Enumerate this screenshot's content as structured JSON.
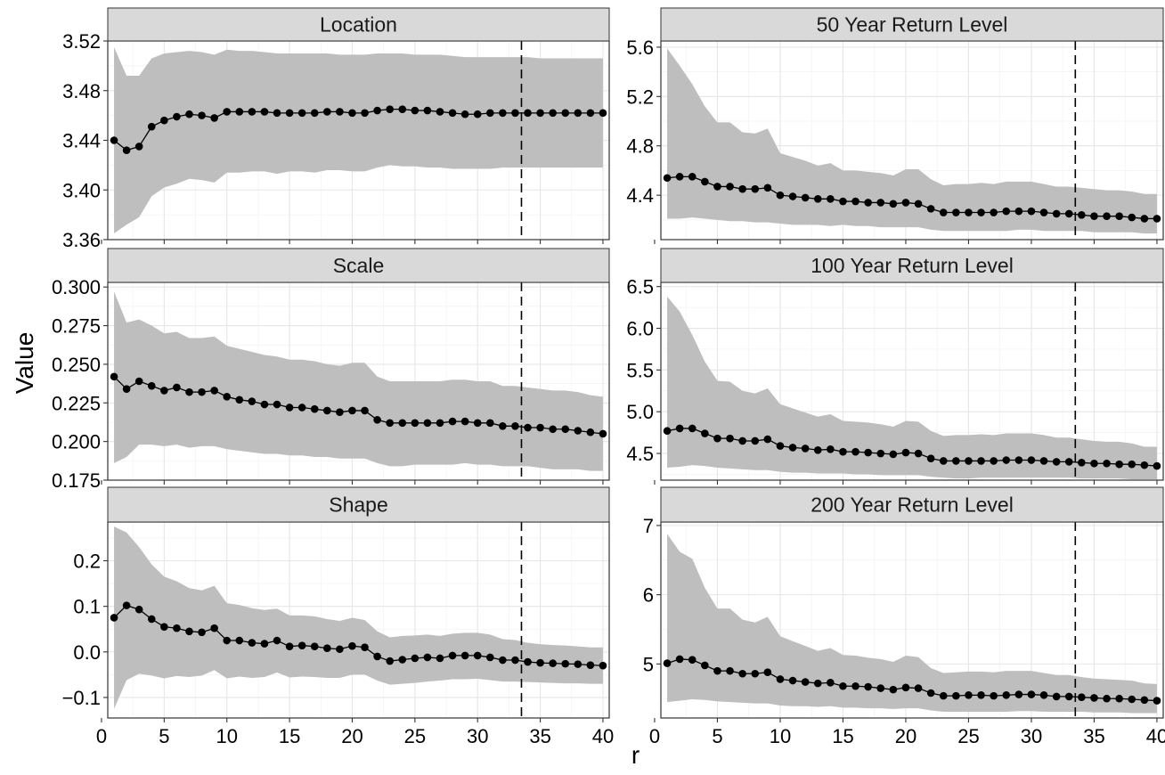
{
  "chart_data": {
    "type": "line",
    "layout": "facet grid, 3 rows x 2 columns, free y scales",
    "xlabel": "r",
    "ylabel": "Value",
    "x": [
      1,
      2,
      3,
      4,
      5,
      6,
      7,
      8,
      9,
      10,
      11,
      12,
      13,
      14,
      15,
      16,
      17,
      18,
      19,
      20,
      21,
      22,
      23,
      24,
      25,
      26,
      27,
      28,
      29,
      30,
      31,
      32,
      33,
      34,
      35,
      36,
      37,
      38,
      39,
      40
    ],
    "xlim": [
      0.5,
      40.5
    ],
    "x_ticks": [
      0,
      5,
      10,
      15,
      20,
      25,
      30,
      35,
      40
    ],
    "x_tick_labels": [
      "0",
      "5",
      "10",
      "15",
      "20",
      "25",
      "30",
      "35",
      "40"
    ],
    "vline_x": 33.5,
    "vline_style": "dashed",
    "grid": true,
    "ribbon_color": "#bebebe",
    "point_color": "#000000",
    "strip_color": "#d9d9d9",
    "panels": [
      {
        "title": "Location",
        "ylim": [
          3.36,
          3.52
        ],
        "y_ticks": [
          3.36,
          3.4,
          3.44,
          3.48,
          3.52
        ],
        "y_tick_labels": [
          "3.36",
          "3.40",
          "3.44",
          "3.48",
          "3.52"
        ],
        "values": [
          3.44,
          3.432,
          3.435,
          3.451,
          3.456,
          3.459,
          3.461,
          3.46,
          3.458,
          3.463,
          3.463,
          3.463,
          3.463,
          3.462,
          3.462,
          3.462,
          3.462,
          3.463,
          3.463,
          3.462,
          3.462,
          3.464,
          3.465,
          3.465,
          3.464,
          3.464,
          3.463,
          3.462,
          3.461,
          3.461,
          3.462,
          3.462,
          3.462,
          3.462,
          3.462,
          3.462,
          3.462,
          3.462,
          3.462,
          3.462
        ],
        "lower": [
          3.365,
          3.372,
          3.378,
          3.395,
          3.402,
          3.405,
          3.409,
          3.408,
          3.406,
          3.414,
          3.414,
          3.415,
          3.415,
          3.413,
          3.415,
          3.415,
          3.414,
          3.416,
          3.416,
          3.415,
          3.415,
          3.418,
          3.42,
          3.419,
          3.419,
          3.418,
          3.418,
          3.417,
          3.417,
          3.417,
          3.417,
          3.418,
          3.418,
          3.418,
          3.418,
          3.418,
          3.418,
          3.418,
          3.418,
          3.418
        ],
        "upper": [
          3.515,
          3.492,
          3.492,
          3.506,
          3.51,
          3.511,
          3.512,
          3.511,
          3.509,
          3.513,
          3.512,
          3.512,
          3.511,
          3.51,
          3.51,
          3.51,
          3.51,
          3.51,
          3.509,
          3.509,
          3.509,
          3.51,
          3.51,
          3.51,
          3.509,
          3.509,
          3.509,
          3.508,
          3.507,
          3.507,
          3.507,
          3.507,
          3.507,
          3.507,
          3.506,
          3.506,
          3.506,
          3.506,
          3.506,
          3.506
        ]
      },
      {
        "title": "50 Year Return Level",
        "ylim": [
          4.04,
          5.65
        ],
        "y_ticks": [
          4.4,
          4.8,
          5.2,
          5.6
        ],
        "y_tick_labels": [
          "4.4",
          "4.8",
          "5.2",
          "5.6"
        ],
        "values": [
          4.54,
          4.55,
          4.55,
          4.51,
          4.47,
          4.47,
          4.45,
          4.45,
          4.46,
          4.4,
          4.39,
          4.38,
          4.37,
          4.37,
          4.35,
          4.35,
          4.34,
          4.34,
          4.33,
          4.34,
          4.33,
          4.29,
          4.26,
          4.26,
          4.26,
          4.26,
          4.26,
          4.27,
          4.27,
          4.27,
          4.26,
          4.25,
          4.25,
          4.24,
          4.23,
          4.23,
          4.23,
          4.22,
          4.21,
          4.21
        ],
        "lower": [
          4.21,
          4.21,
          4.22,
          4.21,
          4.2,
          4.19,
          4.19,
          4.18,
          4.18,
          4.17,
          4.16,
          4.16,
          4.16,
          4.15,
          4.16,
          4.15,
          4.15,
          4.14,
          4.14,
          4.14,
          4.14,
          4.12,
          4.11,
          4.11,
          4.11,
          4.11,
          4.11,
          4.11,
          4.12,
          4.12,
          4.11,
          4.11,
          4.11,
          4.11,
          4.1,
          4.1,
          4.1,
          4.1,
          4.09,
          4.09
        ],
        "upper": [
          5.59,
          5.45,
          5.3,
          5.12,
          4.99,
          4.99,
          4.91,
          4.9,
          4.94,
          4.74,
          4.71,
          4.68,
          4.64,
          4.66,
          4.6,
          4.6,
          4.59,
          4.58,
          4.56,
          4.61,
          4.61,
          4.53,
          4.48,
          4.49,
          4.49,
          4.5,
          4.49,
          4.51,
          4.51,
          4.51,
          4.49,
          4.47,
          4.47,
          4.46,
          4.45,
          4.44,
          4.44,
          4.43,
          4.41,
          4.41
        ]
      },
      {
        "title": "Scale",
        "ylim": [
          0.175,
          0.303
        ],
        "y_ticks": [
          0.175,
          0.2,
          0.225,
          0.25,
          0.275,
          0.3
        ],
        "y_tick_labels": [
          "0.175",
          "0.200",
          "0.225",
          "0.250",
          "0.275",
          "0.300"
        ],
        "values": [
          0.242,
          0.234,
          0.239,
          0.236,
          0.233,
          0.235,
          0.232,
          0.232,
          0.233,
          0.229,
          0.227,
          0.226,
          0.224,
          0.224,
          0.222,
          0.222,
          0.221,
          0.22,
          0.219,
          0.22,
          0.22,
          0.214,
          0.212,
          0.212,
          0.212,
          0.212,
          0.212,
          0.213,
          0.213,
          0.212,
          0.212,
          0.21,
          0.21,
          0.209,
          0.209,
          0.208,
          0.208,
          0.207,
          0.206,
          0.205
        ],
        "lower": [
          0.186,
          0.19,
          0.198,
          0.198,
          0.197,
          0.198,
          0.196,
          0.197,
          0.197,
          0.195,
          0.194,
          0.193,
          0.192,
          0.192,
          0.191,
          0.191,
          0.19,
          0.19,
          0.189,
          0.189,
          0.189,
          0.186,
          0.184,
          0.184,
          0.185,
          0.185,
          0.185,
          0.185,
          0.186,
          0.185,
          0.185,
          0.184,
          0.184,
          0.184,
          0.183,
          0.182,
          0.182,
          0.182,
          0.181,
          0.181
        ],
        "upper": [
          0.297,
          0.277,
          0.279,
          0.275,
          0.27,
          0.271,
          0.267,
          0.267,
          0.268,
          0.262,
          0.26,
          0.258,
          0.256,
          0.255,
          0.253,
          0.253,
          0.252,
          0.25,
          0.249,
          0.251,
          0.251,
          0.242,
          0.239,
          0.239,
          0.239,
          0.239,
          0.239,
          0.24,
          0.24,
          0.239,
          0.239,
          0.236,
          0.236,
          0.235,
          0.234,
          0.233,
          0.233,
          0.232,
          0.23,
          0.229
        ]
      },
      {
        "title": "100 Year Return Level",
        "ylim": [
          4.18,
          6.55
        ],
        "y_ticks": [
          4.5,
          5.0,
          5.5,
          6.0,
          6.5
        ],
        "y_tick_labels": [
          "4.5",
          "5.0",
          "5.5",
          "6.0",
          "6.5"
        ],
        "values": [
          4.77,
          4.8,
          4.8,
          4.74,
          4.68,
          4.68,
          4.65,
          4.65,
          4.67,
          4.59,
          4.57,
          4.56,
          4.54,
          4.55,
          4.52,
          4.52,
          4.51,
          4.5,
          4.49,
          4.51,
          4.5,
          4.44,
          4.41,
          4.41,
          4.41,
          4.41,
          4.41,
          4.42,
          4.42,
          4.42,
          4.41,
          4.4,
          4.4,
          4.39,
          4.38,
          4.38,
          4.37,
          4.37,
          4.36,
          4.35
        ],
        "lower": [
          4.33,
          4.34,
          4.36,
          4.35,
          4.33,
          4.32,
          4.31,
          4.3,
          4.3,
          4.28,
          4.27,
          4.27,
          4.26,
          4.26,
          4.26,
          4.25,
          4.25,
          4.24,
          4.24,
          4.24,
          4.24,
          4.22,
          4.21,
          4.2,
          4.2,
          4.21,
          4.21,
          4.21,
          4.21,
          4.21,
          4.21,
          4.21,
          4.21,
          4.2,
          4.2,
          4.2,
          4.2,
          4.19,
          4.19,
          4.19
        ],
        "upper": [
          6.38,
          6.2,
          5.92,
          5.6,
          5.37,
          5.36,
          5.25,
          5.22,
          5.28,
          5.09,
          5.04,
          4.99,
          4.94,
          4.97,
          4.89,
          4.88,
          4.87,
          4.85,
          4.82,
          4.89,
          4.88,
          4.77,
          4.71,
          4.72,
          4.72,
          4.73,
          4.72,
          4.74,
          4.74,
          4.74,
          4.72,
          4.69,
          4.69,
          4.67,
          4.65,
          4.64,
          4.64,
          4.62,
          4.58,
          4.58
        ]
      },
      {
        "title": "Shape",
        "ylim": [
          -0.145,
          0.285
        ],
        "y_ticks": [
          -0.1,
          0.0,
          0.1,
          0.2
        ],
        "y_tick_labels": [
          "−0.1",
          "0.0",
          "0.1",
          "0.2"
        ],
        "values": [
          0.075,
          0.102,
          0.093,
          0.072,
          0.055,
          0.052,
          0.045,
          0.043,
          0.052,
          0.025,
          0.025,
          0.02,
          0.018,
          0.025,
          0.012,
          0.014,
          0.012,
          0.008,
          0.006,
          0.013,
          0.01,
          -0.01,
          -0.02,
          -0.017,
          -0.014,
          -0.012,
          -0.014,
          -0.008,
          -0.008,
          -0.008,
          -0.012,
          -0.018,
          -0.018,
          -0.022,
          -0.024,
          -0.025,
          -0.026,
          -0.027,
          -0.029,
          -0.03
        ],
        "lower": [
          -0.125,
          -0.062,
          -0.048,
          -0.052,
          -0.058,
          -0.053,
          -0.055,
          -0.052,
          -0.04,
          -0.058,
          -0.054,
          -0.057,
          -0.055,
          -0.045,
          -0.056,
          -0.054,
          -0.055,
          -0.057,
          -0.057,
          -0.05,
          -0.05,
          -0.063,
          -0.072,
          -0.07,
          -0.068,
          -0.065,
          -0.063,
          -0.06,
          -0.06,
          -0.059,
          -0.062,
          -0.065,
          -0.065,
          -0.066,
          -0.067,
          -0.068,
          -0.069,
          -0.069,
          -0.07,
          -0.07
        ],
        "upper": [
          0.275,
          0.262,
          0.23,
          0.192,
          0.165,
          0.155,
          0.14,
          0.135,
          0.145,
          0.107,
          0.103,
          0.096,
          0.092,
          0.095,
          0.08,
          0.08,
          0.078,
          0.072,
          0.068,
          0.075,
          0.07,
          0.045,
          0.032,
          0.035,
          0.036,
          0.038,
          0.035,
          0.04,
          0.042,
          0.042,
          0.038,
          0.028,
          0.026,
          0.02,
          0.017,
          0.015,
          0.014,
          0.012,
          0.01,
          0.01
        ]
      },
      {
        "title": "200 Year Return Level",
        "ylim": [
          4.22,
          7.05
        ],
        "y_ticks": [
          5,
          6,
          7
        ],
        "y_tick_labels": [
          "5",
          "6",
          "7"
        ],
        "values": [
          5.01,
          5.07,
          5.06,
          4.98,
          4.9,
          4.9,
          4.86,
          4.86,
          4.88,
          4.78,
          4.76,
          4.74,
          4.72,
          4.73,
          4.68,
          4.68,
          4.67,
          4.65,
          4.63,
          4.66,
          4.65,
          4.58,
          4.54,
          4.54,
          4.55,
          4.55,
          4.54,
          4.55,
          4.56,
          4.56,
          4.55,
          4.53,
          4.53,
          4.52,
          4.51,
          4.5,
          4.5,
          4.49,
          4.48,
          4.47
        ],
        "lower": [
          4.45,
          4.47,
          4.49,
          4.48,
          4.46,
          4.45,
          4.44,
          4.43,
          4.43,
          4.4,
          4.39,
          4.39,
          4.38,
          4.39,
          4.37,
          4.37,
          4.36,
          4.36,
          4.35,
          4.36,
          4.36,
          4.33,
          4.31,
          4.31,
          4.31,
          4.31,
          4.31,
          4.31,
          4.32,
          4.32,
          4.31,
          4.31,
          4.31,
          4.31,
          4.3,
          4.3,
          4.3,
          4.29,
          4.29,
          4.29
        ],
        "upper": [
          6.88,
          6.62,
          6.52,
          6.1,
          5.8,
          5.8,
          5.64,
          5.6,
          5.68,
          5.4,
          5.33,
          5.26,
          5.19,
          5.23,
          5.13,
          5.12,
          5.09,
          5.07,
          5.03,
          5.12,
          5.1,
          4.94,
          4.87,
          4.88,
          4.89,
          4.89,
          4.88,
          4.9,
          4.9,
          4.9,
          4.87,
          4.84,
          4.84,
          4.81,
          4.79,
          4.78,
          4.77,
          4.76,
          4.72,
          4.71
        ]
      }
    ]
  }
}
